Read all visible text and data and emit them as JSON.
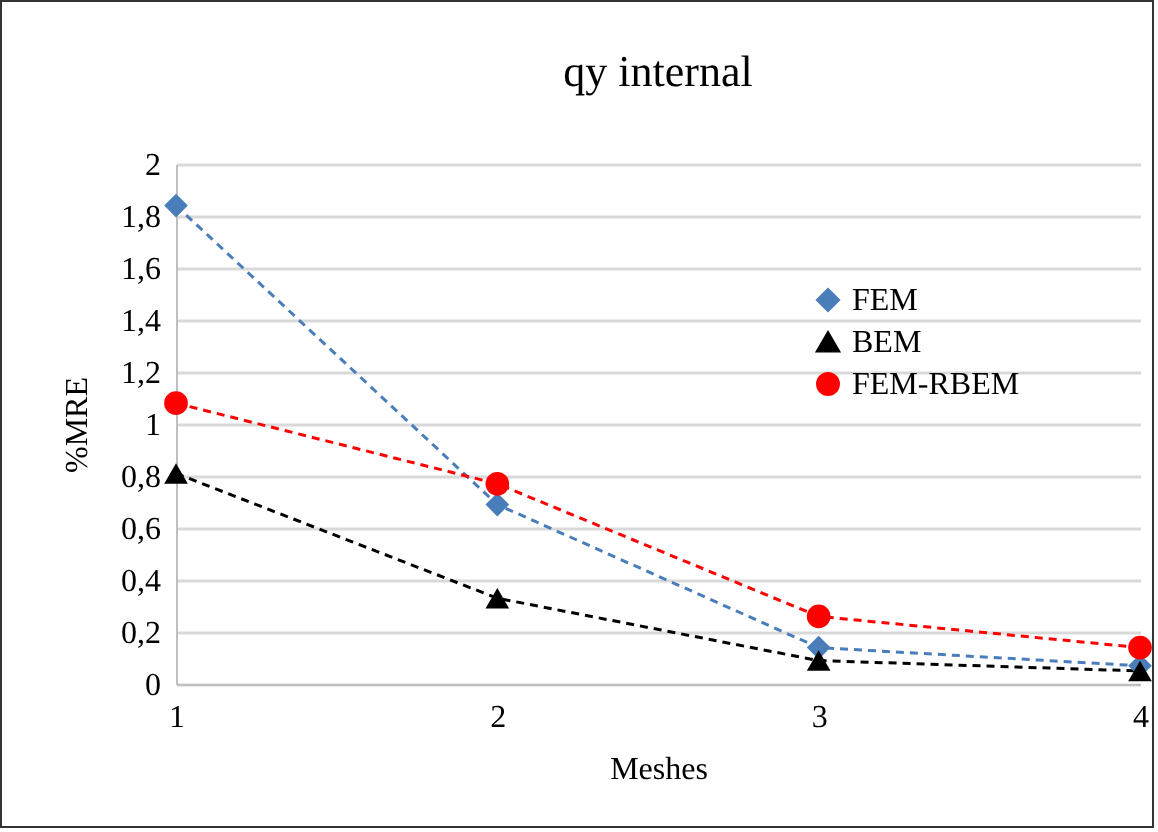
{
  "chart_data": {
    "type": "line",
    "title": "qy internal",
    "xlabel": "Meshes",
    "ylabel": "%MRE",
    "categories": [
      "1",
      "2",
      "3",
      "4"
    ],
    "series": [
      {
        "name": "FEM",
        "color": "#4a7ebb",
        "marker": "diamond",
        "values": [
          1.84,
          0.69,
          0.14,
          0.07
        ]
      },
      {
        "name": "BEM",
        "color": "#000000",
        "marker": "triangle",
        "values": [
          0.81,
          0.33,
          0.09,
          0.05
        ]
      },
      {
        "name": "FEM-RBEM",
        "color": "#ff0000",
        "marker": "circle",
        "values": [
          1.08,
          0.77,
          0.26,
          0.14
        ]
      }
    ],
    "ylim": [
      0,
      2
    ],
    "yticks": [
      0,
      {
        "value": 0.2,
        "label": "0,2"
      },
      {
        "value": 0.4,
        "label": "0,4"
      },
      {
        "value": 0.6,
        "label": "0,6"
      },
      {
        "value": 0.8,
        "label": "0,8"
      },
      1,
      {
        "value": 1.2,
        "label": "1,2"
      },
      {
        "value": 1.4,
        "label": "1,4"
      },
      {
        "value": 1.6,
        "label": "1,6"
      },
      {
        "value": 1.8,
        "label": "1,8"
      },
      2
    ],
    "grid": "y",
    "legend": "top right",
    "line_style": "dashed"
  }
}
